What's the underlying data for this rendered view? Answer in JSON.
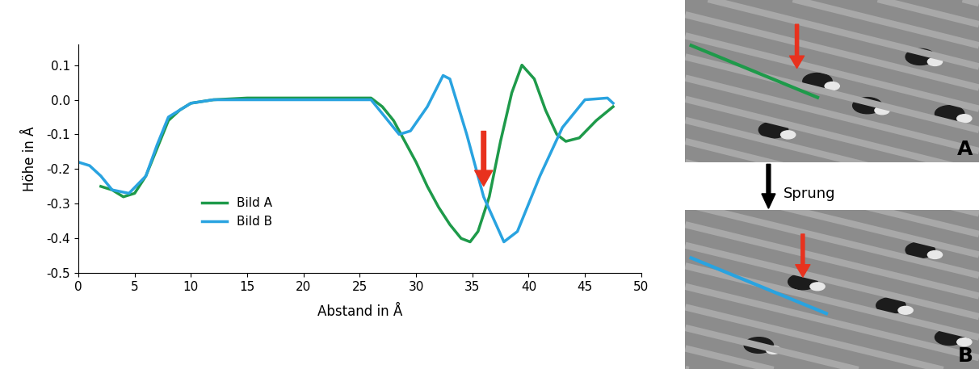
{
  "chart_data": {
    "type": "line",
    "x_label": "Abstand in Å",
    "y_label": "Höhe in Å",
    "xlim": [
      0,
      50
    ],
    "xticks": [
      0,
      5,
      10,
      15,
      20,
      25,
      30,
      35,
      40,
      45,
      50
    ],
    "ylim": [
      -0.5,
      0.16
    ],
    "yticks": [
      -0.5,
      -0.4,
      -0.3,
      -0.2,
      -0.1,
      {
        "value": 0,
        "label": "0.0"
      },
      0.1
    ],
    "legend": "lower left",
    "grid": false,
    "series": [
      {
        "name": "Bild A",
        "color": "#1e9a4a",
        "x": [
          2,
          3,
          4,
          5,
          6,
          7,
          8,
          9,
          10,
          12,
          15,
          20,
          25,
          26,
          27,
          28,
          29,
          30,
          31,
          32,
          33,
          34,
          34.8,
          35.5,
          36.5,
          37.5,
          38.5,
          39.4,
          40.5,
          41.5,
          42.5,
          43.3,
          44.5,
          46,
          47.5
        ],
        "values": [
          -0.25,
          -0.26,
          -0.28,
          -0.27,
          -0.22,
          -0.14,
          -0.06,
          -0.03,
          -0.01,
          0,
          0.005,
          0.005,
          0.005,
          0.005,
          -0.02,
          -0.06,
          -0.12,
          -0.18,
          -0.25,
          -0.31,
          -0.36,
          -0.4,
          -0.41,
          -0.38,
          -0.28,
          -0.12,
          0.02,
          0.1,
          0.06,
          -0.03,
          -0.1,
          -0.12,
          -0.11,
          -0.06,
          -0.02
        ]
      },
      {
        "name": "Bild B",
        "color": "#29a3e0",
        "x": [
          0,
          1,
          2,
          3,
          4.5,
          6,
          7,
          8,
          10,
          12,
          15,
          20,
          26,
          27,
          28.5,
          29.5,
          31,
          32.4,
          33,
          34.5,
          36,
          37.8,
          39,
          41,
          43,
          45,
          47,
          47.5
        ],
        "values": [
          -0.18,
          -0.19,
          -0.22,
          -0.26,
          -0.27,
          -0.22,
          -0.13,
          -0.05,
          -0.01,
          0,
          0,
          0,
          0,
          -0.04,
          -0.1,
          -0.09,
          -0.02,
          0.07,
          0.06,
          -0.1,
          -0.28,
          -0.41,
          -0.38,
          -0.22,
          -0.08,
          0,
          0.005,
          -0.01
        ]
      }
    ]
  },
  "images": {
    "panel_labels": [
      "A",
      "B"
    ],
    "transition_label": "Sprung"
  }
}
